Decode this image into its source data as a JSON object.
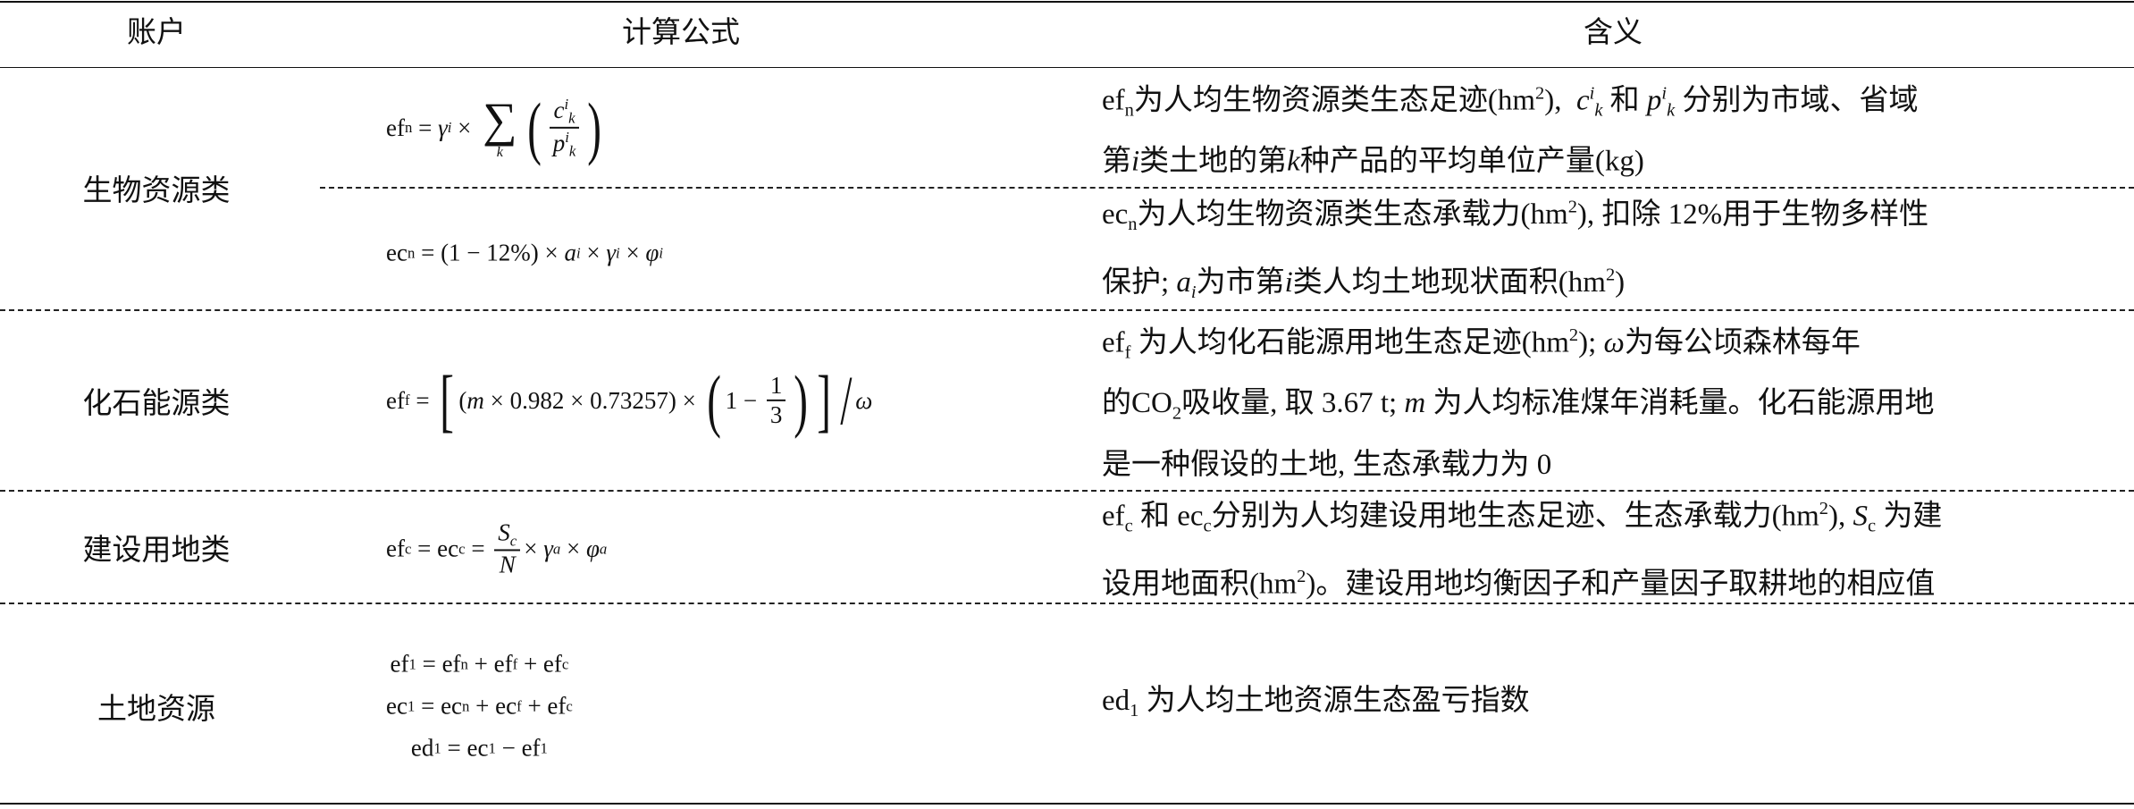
{
  "header": {
    "account": "账户",
    "formula": "计算公式",
    "meaning": "含义"
  },
  "rows": [
    {
      "account": "生物资源类",
      "formulas": [
        {
          "tokens": [
            {
              "t": "ef"
            },
            {
              "t": "n",
              "s": "sub"
            },
            {
              "t": " = "
            },
            {
              "t": "γ",
              "s": "i"
            },
            {
              "t": "i",
              "s": "isub"
            },
            {
              "t": " × "
            },
            {
              "big": "∑",
              "under": "k"
            },
            {
              "t": "(",
              "s": "bp"
            },
            {
              "frac": {
                "num": [
                  {
                    "t": "c",
                    "s": "i"
                  },
                  {
                    "t": "i",
                    "s": "isup"
                  },
                  {
                    "t": "k",
                    "s": "isub"
                  }
                ],
                "den": [
                  {
                    "t": "p",
                    "s": "i"
                  },
                  {
                    "t": "i",
                    "s": "isup"
                  },
                  {
                    "t": "k",
                    "s": "isub"
                  }
                ]
              }
            },
            {
              "t": ")",
              "s": "bp"
            }
          ]
        },
        {
          "tokens": [
            {
              "t": "ec"
            },
            {
              "t": "n",
              "s": "sub"
            },
            {
              "t": " = (1 − 12%) × "
            },
            {
              "t": "a",
              "s": "i"
            },
            {
              "t": "i",
              "s": "isub"
            },
            {
              "t": " × "
            },
            {
              "t": "γ",
              "s": "i"
            },
            {
              "t": "i",
              "s": "isub"
            },
            {
              "t": " × "
            },
            {
              "t": "φ",
              "s": "i"
            },
            {
              "t": "i",
              "s": "isub"
            }
          ]
        }
      ],
      "meanings": [
        {
          "lines": [
            [
              {
                "t": "ef"
              },
              {
                "t": "n",
                "s": "sub"
              },
              {
                "t": "为人均生物资源类生态足迹(hm"
              },
              {
                "t": "2",
                "s": "sup"
              },
              {
                "t": "),  "
              },
              {
                "t": "c",
                "s": "i"
              },
              {
                "t": "i",
                "s": "isup"
              },
              {
                "t": "k",
                "s": "isub"
              },
              {
                "t": " 和 "
              },
              {
                "t": "p",
                "s": "i"
              },
              {
                "t": "i",
                "s": "isup"
              },
              {
                "t": "k",
                "s": "isub"
              },
              {
                "t": " 分别为市域、省域"
              }
            ],
            [
              {
                "t": "第"
              },
              {
                "t": "i",
                "s": "i"
              },
              {
                "t": "类土地的第"
              },
              {
                "t": "k",
                "s": "i"
              },
              {
                "t": "种产品的平均单位产量(kg)"
              }
            ]
          ]
        },
        {
          "lines": [
            [
              {
                "t": "ec"
              },
              {
                "t": "n",
                "s": "sub"
              },
              {
                "t": "为人均生物资源类生态承载力(hm"
              },
              {
                "t": "2",
                "s": "sup"
              },
              {
                "t": "), 扣除 12%用于生物多样性"
              }
            ],
            [
              {
                "t": "保护; "
              },
              {
                "t": "a",
                "s": "i"
              },
              {
                "t": "i",
                "s": "isub"
              },
              {
                "t": "为市第"
              },
              {
                "t": "i",
                "s": "i"
              },
              {
                "t": "类人均土地现状面积(hm"
              },
              {
                "t": "2",
                "s": "sup"
              },
              {
                "t": ")"
              }
            ]
          ]
        }
      ]
    },
    {
      "account": "化石能源类",
      "formulas": [
        {
          "tokens": [
            {
              "t": "ef"
            },
            {
              "t": "f",
              "s": "sub"
            },
            {
              "t": " = "
            },
            {
              "t": "[",
              "s": "bp"
            },
            {
              "t": "("
            },
            {
              "t": "m",
              "s": "i"
            },
            {
              "t": " × 0.982 × 0.73257) × "
            },
            {
              "t": "(",
              "s": "bp"
            },
            {
              "t": "1 − "
            },
            {
              "frac": {
                "num": [
                  {
                    "t": "1"
                  }
                ],
                "den": [
                  {
                    "t": "3"
                  }
                ]
              }
            },
            {
              "t": ")",
              "s": "bp"
            },
            {
              "t": "]",
              "s": "bp"
            },
            {
              "t": "/",
              "s": "bp"
            },
            {
              "t": "ω",
              "s": "i"
            }
          ]
        }
      ],
      "meanings": [
        {
          "lines": [
            [
              {
                "t": "ef"
              },
              {
                "t": "f",
                "s": "sub"
              },
              {
                "t": " 为人均化石能源用地生态足迹(hm"
              },
              {
                "t": "2",
                "s": "sup"
              },
              {
                "t": "); "
              },
              {
                "t": "ω",
                "s": "i"
              },
              {
                "t": "为每公顷森林每年"
              }
            ],
            [
              {
                "t": "的CO"
              },
              {
                "t": "2",
                "s": "sub"
              },
              {
                "t": "吸收量, 取 3.67 t; "
              },
              {
                "t": "m",
                "s": "i"
              },
              {
                "t": " 为人均标准煤年消耗量。化石能源用地"
              }
            ],
            [
              {
                "t": "是一种假设的土地, 生态承载力为 0"
              }
            ]
          ]
        }
      ]
    },
    {
      "account": "建设用地类",
      "formulas": [
        {
          "tokens": [
            {
              "t": "ef"
            },
            {
              "t": "c",
              "s": "sub"
            },
            {
              "t": " = ec"
            },
            {
              "t": "c",
              "s": "sub"
            },
            {
              "t": " = "
            },
            {
              "frac": {
                "num": [
                  {
                    "t": "S",
                    "s": "i"
                  },
                  {
                    "t": "c",
                    "s": "isub"
                  }
                ],
                "den": [
                  {
                    "t": "N",
                    "s": "i"
                  }
                ]
              }
            },
            {
              "t": "× "
            },
            {
              "t": "γ",
              "s": "i"
            },
            {
              "t": "a",
              "s": "isub"
            },
            {
              "t": " × "
            },
            {
              "t": "φ",
              "s": "i"
            },
            {
              "t": "a",
              "s": "isub"
            }
          ]
        }
      ],
      "meanings": [
        {
          "lines": [
            [
              {
                "t": "ef"
              },
              {
                "t": "c",
                "s": "sub"
              },
              {
                "t": " 和 ec"
              },
              {
                "t": "c",
                "s": "sub"
              },
              {
                "t": "分别为人均建设用地生态足迹、生态承载力(hm"
              },
              {
                "t": "2",
                "s": "sup"
              },
              {
                "t": "), "
              },
              {
                "t": "S",
                "s": "i"
              },
              {
                "t": "c",
                "s": "sub"
              },
              {
                "t": " 为建"
              }
            ],
            [
              {
                "t": "设用地面积(hm"
              },
              {
                "t": "2",
                "s": "sup"
              },
              {
                "t": ")。建设用地均衡因子和产量因子取耕地的相应值"
              }
            ]
          ]
        }
      ]
    },
    {
      "account": "土地资源",
      "formulas": [
        {
          "tokens": [
            {
              "t": "ef"
            },
            {
              "t": "1",
              "s": "sub"
            },
            {
              "t": " = ef"
            },
            {
              "t": "n",
              "s": "sub"
            },
            {
              "t": " + ef"
            },
            {
              "t": "f",
              "s": "sub"
            },
            {
              "t": " + ef"
            },
            {
              "t": "c",
              "s": "sub"
            }
          ]
        },
        {
          "tokens": [
            {
              "t": "ec"
            },
            {
              "t": "1",
              "s": "sub"
            },
            {
              "t": " = ec"
            },
            {
              "t": "n",
              "s": "sub"
            },
            {
              "t": " + ec"
            },
            {
              "t": "f",
              "s": "sub"
            },
            {
              "t": " + ef"
            },
            {
              "t": "c",
              "s": "sub"
            }
          ]
        },
        {
          "tokens": [
            {
              "t": "ed"
            },
            {
              "t": "1",
              "s": "sub"
            },
            {
              "t": " = ec"
            },
            {
              "t": "1",
              "s": "sub"
            },
            {
              "t": " − ef"
            },
            {
              "t": "1",
              "s": "sub"
            }
          ]
        }
      ],
      "meanings": [
        {
          "lines": [
            [
              {
                "t": "ed"
              },
              {
                "t": "1",
                "s": "sub"
              },
              {
                "t": " 为人均土地资源生态盈亏指数"
              }
            ]
          ]
        }
      ]
    }
  ]
}
